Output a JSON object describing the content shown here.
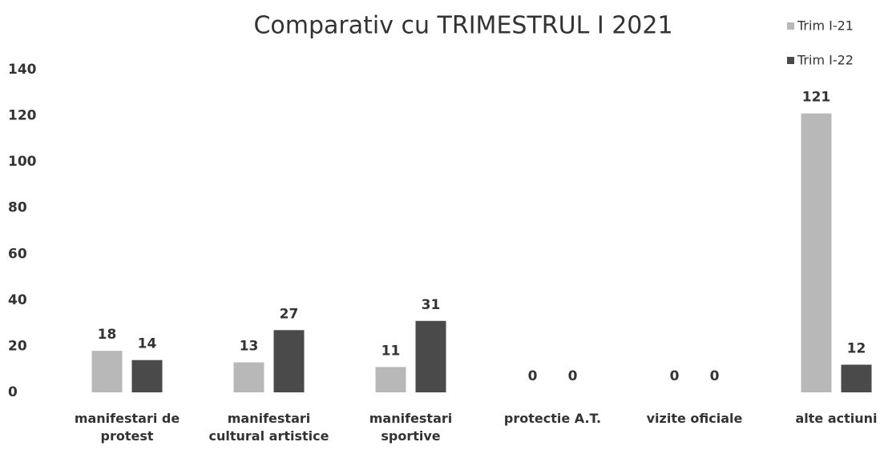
{
  "chart_data": {
    "type": "bar",
    "title": "Comparativ cu TRIMESTRUL I 2021",
    "categories": [
      "manifestari de protest",
      "manifestari cultural artistice",
      "manifestari sportive",
      "protectie A.T.",
      "vizite oficiale",
      "alte actiuni"
    ],
    "series": [
      {
        "name": "Trim I-21",
        "color": "#b8b8b8",
        "values": [
          18,
          13,
          11,
          0,
          0,
          121
        ]
      },
      {
        "name": "Trim I-22",
        "color": "#4a4a4a",
        "values": [
          14,
          27,
          31,
          0,
          0,
          12
        ]
      }
    ],
    "ylim": [
      0,
      140
    ],
    "yticks": [
      0,
      20,
      40,
      60,
      80,
      100,
      120,
      140
    ],
    "grid": false,
    "legend": "top-right"
  }
}
